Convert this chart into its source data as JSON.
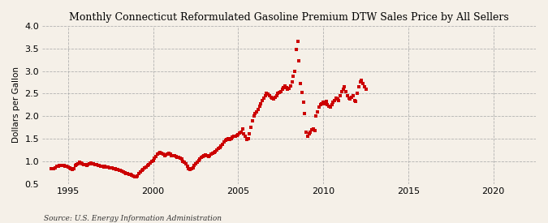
{
  "title": "Monthly Connecticut Reformulated Gasoline Premium DTW Sales Price by All Sellers",
  "ylabel": "Dollars per Gallon",
  "source": "Source: U.S. Energy Information Administration",
  "xlim": [
    1993.5,
    2022.5
  ],
  "ylim": [
    0.5,
    4.0
  ],
  "yticks": [
    0.5,
    1.0,
    1.5,
    2.0,
    2.5,
    3.0,
    3.5,
    4.0
  ],
  "xticks": [
    1995,
    2000,
    2005,
    2010,
    2015,
    2020
  ],
  "background_color": "#f5f0e8",
  "line_color": "#cc0000",
  "marker": "s",
  "markersize": 3.0,
  "data": [
    [
      1994.0,
      0.84
    ],
    [
      1994.083,
      0.83
    ],
    [
      1994.167,
      0.84
    ],
    [
      1994.25,
      0.86
    ],
    [
      1994.333,
      0.88
    ],
    [
      1994.417,
      0.89
    ],
    [
      1994.5,
      0.91
    ],
    [
      1994.583,
      0.9
    ],
    [
      1994.667,
      0.9
    ],
    [
      1994.75,
      0.91
    ],
    [
      1994.833,
      0.89
    ],
    [
      1994.917,
      0.88
    ],
    [
      1995.0,
      0.87
    ],
    [
      1995.083,
      0.85
    ],
    [
      1995.167,
      0.83
    ],
    [
      1995.25,
      0.82
    ],
    [
      1995.333,
      0.84
    ],
    [
      1995.417,
      0.9
    ],
    [
      1995.5,
      0.93
    ],
    [
      1995.583,
      0.95
    ],
    [
      1995.667,
      0.97
    ],
    [
      1995.75,
      0.96
    ],
    [
      1995.833,
      0.94
    ],
    [
      1995.917,
      0.93
    ],
    [
      1996.0,
      0.92
    ],
    [
      1996.083,
      0.91
    ],
    [
      1996.167,
      0.93
    ],
    [
      1996.25,
      0.95
    ],
    [
      1996.333,
      0.96
    ],
    [
      1996.417,
      0.95
    ],
    [
      1996.5,
      0.94
    ],
    [
      1996.583,
      0.93
    ],
    [
      1996.667,
      0.92
    ],
    [
      1996.75,
      0.91
    ],
    [
      1996.833,
      0.9
    ],
    [
      1996.917,
      0.89
    ],
    [
      1997.0,
      0.88
    ],
    [
      1997.083,
      0.87
    ],
    [
      1997.167,
      0.88
    ],
    [
      1997.25,
      0.87
    ],
    [
      1997.333,
      0.87
    ],
    [
      1997.417,
      0.86
    ],
    [
      1997.5,
      0.85
    ],
    [
      1997.583,
      0.85
    ],
    [
      1997.667,
      0.84
    ],
    [
      1997.75,
      0.83
    ],
    [
      1997.833,
      0.82
    ],
    [
      1997.917,
      0.81
    ],
    [
      1998.0,
      0.8
    ],
    [
      1998.083,
      0.79
    ],
    [
      1998.167,
      0.78
    ],
    [
      1998.25,
      0.77
    ],
    [
      1998.333,
      0.75
    ],
    [
      1998.417,
      0.73
    ],
    [
      1998.5,
      0.72
    ],
    [
      1998.583,
      0.71
    ],
    [
      1998.667,
      0.7
    ],
    [
      1998.75,
      0.69
    ],
    [
      1998.833,
      0.67
    ],
    [
      1998.917,
      0.65
    ],
    [
      1999.0,
      0.65
    ],
    [
      1999.083,
      0.68
    ],
    [
      1999.167,
      0.72
    ],
    [
      1999.25,
      0.76
    ],
    [
      1999.333,
      0.8
    ],
    [
      1999.417,
      0.82
    ],
    [
      1999.5,
      0.85
    ],
    [
      1999.583,
      0.87
    ],
    [
      1999.667,
      0.9
    ],
    [
      1999.75,
      0.93
    ],
    [
      1999.833,
      0.96
    ],
    [
      1999.917,
      0.99
    ],
    [
      2000.0,
      1.02
    ],
    [
      2000.083,
      1.06
    ],
    [
      2000.167,
      1.1
    ],
    [
      2000.25,
      1.15
    ],
    [
      2000.333,
      1.18
    ],
    [
      2000.417,
      1.2
    ],
    [
      2000.5,
      1.18
    ],
    [
      2000.583,
      1.15
    ],
    [
      2000.667,
      1.12
    ],
    [
      2000.75,
      1.14
    ],
    [
      2000.833,
      1.16
    ],
    [
      2000.917,
      1.17
    ],
    [
      2001.0,
      1.15
    ],
    [
      2001.083,
      1.13
    ],
    [
      2001.167,
      1.12
    ],
    [
      2001.25,
      1.13
    ],
    [
      2001.333,
      1.1
    ],
    [
      2001.417,
      1.08
    ],
    [
      2001.5,
      1.08
    ],
    [
      2001.583,
      1.07
    ],
    [
      2001.667,
      1.05
    ],
    [
      2001.75,
      1.0
    ],
    [
      2001.833,
      0.98
    ],
    [
      2001.917,
      0.95
    ],
    [
      2002.0,
      0.88
    ],
    [
      2002.083,
      0.84
    ],
    [
      2002.167,
      0.82
    ],
    [
      2002.25,
      0.83
    ],
    [
      2002.333,
      0.86
    ],
    [
      2002.417,
      0.9
    ],
    [
      2002.5,
      0.94
    ],
    [
      2002.583,
      0.98
    ],
    [
      2002.667,
      1.02
    ],
    [
      2002.75,
      1.05
    ],
    [
      2002.833,
      1.08
    ],
    [
      2002.917,
      1.1
    ],
    [
      2003.0,
      1.12
    ],
    [
      2003.083,
      1.14
    ],
    [
      2003.167,
      1.12
    ],
    [
      2003.25,
      1.1
    ],
    [
      2003.333,
      1.12
    ],
    [
      2003.417,
      1.15
    ],
    [
      2003.5,
      1.18
    ],
    [
      2003.583,
      1.2
    ],
    [
      2003.667,
      1.22
    ],
    [
      2003.75,
      1.25
    ],
    [
      2003.833,
      1.28
    ],
    [
      2003.917,
      1.3
    ],
    [
      2004.0,
      1.33
    ],
    [
      2004.083,
      1.38
    ],
    [
      2004.167,
      1.43
    ],
    [
      2004.25,
      1.47
    ],
    [
      2004.333,
      1.49
    ],
    [
      2004.417,
      1.5
    ],
    [
      2004.5,
      1.49
    ],
    [
      2004.583,
      1.5
    ],
    [
      2004.667,
      1.53
    ],
    [
      2004.75,
      1.55
    ],
    [
      2004.833,
      1.56
    ],
    [
      2004.917,
      1.57
    ],
    [
      2005.0,
      1.59
    ],
    [
      2005.083,
      1.62
    ],
    [
      2005.167,
      1.65
    ],
    [
      2005.25,
      1.72
    ],
    [
      2005.333,
      1.6
    ],
    [
      2005.417,
      1.55
    ],
    [
      2005.5,
      1.49
    ],
    [
      2005.583,
      1.5
    ],
    [
      2005.667,
      1.6
    ],
    [
      2005.75,
      1.75
    ],
    [
      2005.833,
      1.9
    ],
    [
      2005.917,
      2.0
    ],
    [
      2006.0,
      2.05
    ],
    [
      2006.083,
      2.1
    ],
    [
      2006.167,
      2.15
    ],
    [
      2006.25,
      2.22
    ],
    [
      2006.333,
      2.28
    ],
    [
      2006.417,
      2.35
    ],
    [
      2006.5,
      2.4
    ],
    [
      2006.583,
      2.45
    ],
    [
      2006.667,
      2.5
    ],
    [
      2006.75,
      2.48
    ],
    [
      2006.833,
      2.45
    ],
    [
      2006.917,
      2.42
    ],
    [
      2007.0,
      2.4
    ],
    [
      2007.083,
      2.38
    ],
    [
      2007.167,
      2.42
    ],
    [
      2007.25,
      2.45
    ],
    [
      2007.333,
      2.5
    ],
    [
      2007.417,
      2.52
    ],
    [
      2007.5,
      2.55
    ],
    [
      2007.583,
      2.6
    ],
    [
      2007.667,
      2.63
    ],
    [
      2007.75,
      2.66
    ],
    [
      2007.833,
      2.63
    ],
    [
      2007.917,
      2.6
    ],
    [
      2008.0,
      2.62
    ],
    [
      2008.083,
      2.67
    ],
    [
      2008.167,
      2.75
    ],
    [
      2008.25,
      2.88
    ],
    [
      2008.333,
      3.0
    ],
    [
      2008.417,
      3.48
    ],
    [
      2008.5,
      3.65
    ],
    [
      2008.583,
      3.22
    ],
    [
      2008.667,
      2.72
    ],
    [
      2008.75,
      2.52
    ],
    [
      2008.833,
      2.3
    ],
    [
      2008.917,
      2.05
    ],
    [
      2009.0,
      1.65
    ],
    [
      2009.083,
      1.55
    ],
    [
      2009.167,
      1.6
    ],
    [
      2009.25,
      1.65
    ],
    [
      2009.333,
      1.7
    ],
    [
      2009.417,
      1.72
    ],
    [
      2009.5,
      1.68
    ],
    [
      2009.583,
      2.0
    ],
    [
      2009.667,
      2.1
    ],
    [
      2009.75,
      2.2
    ],
    [
      2009.833,
      2.25
    ],
    [
      2009.917,
      2.28
    ],
    [
      2010.0,
      2.3
    ],
    [
      2010.083,
      2.28
    ],
    [
      2010.167,
      2.32
    ],
    [
      2010.25,
      2.25
    ],
    [
      2010.333,
      2.22
    ],
    [
      2010.417,
      2.2
    ],
    [
      2010.5,
      2.25
    ],
    [
      2010.583,
      2.3
    ],
    [
      2010.667,
      2.35
    ],
    [
      2010.75,
      2.4
    ],
    [
      2010.833,
      2.38
    ],
    [
      2010.917,
      2.35
    ],
    [
      2011.0,
      2.45
    ],
    [
      2011.083,
      2.55
    ],
    [
      2011.167,
      2.6
    ],
    [
      2011.25,
      2.65
    ],
    [
      2011.333,
      2.55
    ],
    [
      2011.417,
      2.45
    ],
    [
      2011.5,
      2.4
    ],
    [
      2011.583,
      2.38
    ],
    [
      2011.667,
      2.42
    ],
    [
      2011.75,
      2.45
    ],
    [
      2011.833,
      2.35
    ],
    [
      2011.917,
      2.32
    ],
    [
      2012.0,
      2.5
    ],
    [
      2012.083,
      2.65
    ],
    [
      2012.167,
      2.75
    ],
    [
      2012.25,
      2.8
    ],
    [
      2012.333,
      2.72
    ],
    [
      2012.417,
      2.65
    ],
    [
      2012.5,
      2.6
    ]
  ]
}
